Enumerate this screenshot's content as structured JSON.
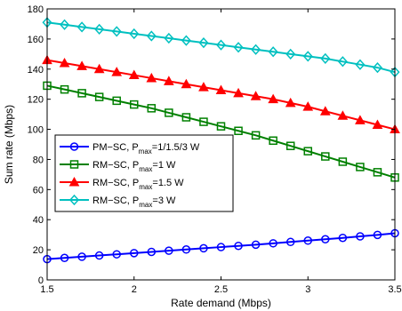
{
  "chart_data": {
    "type": "line",
    "xlabel": "Rate demand (Mbps)",
    "ylabel": "Sum rate (Mbps)",
    "xlim": [
      1.5,
      3.5
    ],
    "ylim": [
      0,
      180
    ],
    "xticks": [
      1.5,
      2,
      2.5,
      3,
      3.5
    ],
    "yticks": [
      0,
      20,
      40,
      60,
      80,
      100,
      120,
      140,
      160,
      180
    ],
    "grid": false,
    "legend_position": "center-left",
    "x": [
      1.5,
      1.6,
      1.7,
      1.8,
      1.9,
      2.0,
      2.1,
      2.2,
      2.3,
      2.4,
      2.5,
      2.6,
      2.7,
      2.8,
      2.9,
      3.0,
      3.1,
      3.2,
      3.3,
      3.4,
      3.5
    ],
    "series": [
      {
        "name": "PM−SC, P",
        "name_sub": "max",
        "name_tail": "=1/1.5/3 W",
        "color": "#0000ff",
        "marker": "circle",
        "values": [
          13.8,
          14.6,
          15.4,
          16.2,
          17.0,
          17.8,
          18.6,
          19.4,
          20.2,
          21.0,
          21.8,
          22.6,
          23.4,
          24.3,
          25.2,
          26.1,
          27.0,
          27.9,
          28.9,
          29.9,
          31.0
        ]
      },
      {
        "name": "RM−SC, P",
        "name_sub": "max",
        "name_tail": "=1 W",
        "color": "#008000",
        "marker": "square",
        "values": [
          129,
          126.5,
          124,
          121.5,
          119,
          116.5,
          114,
          111,
          108,
          105,
          102,
          99,
          96,
          92.5,
          89,
          85.5,
          82,
          78.5,
          75,
          71.5,
          68
        ]
      },
      {
        "name": "RM−SC, P",
        "name_sub": "max",
        "name_tail": "=1.5 W",
        "color": "#ff0000",
        "marker": "triangle",
        "values": [
          146,
          144,
          142,
          140,
          138,
          136,
          134,
          132,
          130,
          128,
          126,
          124,
          122,
          120,
          117.5,
          115,
          112,
          109,
          106,
          103,
          100
        ]
      },
      {
        "name": "RM−SC, P",
        "name_sub": "max",
        "name_tail": "=3 W",
        "color": "#00c0c0",
        "marker": "diamond",
        "values": [
          171,
          169.5,
          168,
          166.5,
          165,
          163.5,
          162,
          160.5,
          159,
          157.5,
          156,
          154.5,
          153,
          151.5,
          150,
          148.5,
          147,
          145,
          143,
          141,
          138
        ]
      }
    ]
  }
}
